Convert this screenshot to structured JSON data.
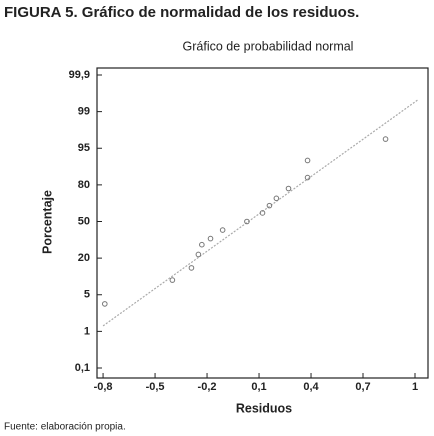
{
  "figure": {
    "caption": "FIGURA 5. Gráfico de normalidad de los residuos.",
    "source": "Fuente: elaboración propia."
  },
  "chart_data": {
    "type": "scatter",
    "title": "Gráfico de probabilidad normal",
    "x_label": "Residuos",
    "y_label": "Porcentaje",
    "series": [
      {
        "name": "Residuos",
        "color": "#777777",
        "x": [
          -0.79,
          -0.4,
          -0.29,
          -0.25,
          -0.23,
          -0.18,
          -0.11,
          0.03,
          0.12,
          0.16,
          0.2,
          0.27,
          0.38,
          0.38,
          0.83
        ],
        "values": [
          4,
          11,
          16,
          23,
          31,
          36,
          43,
          50,
          57,
          63,
          69,
          77,
          83,
          90,
          96
        ]
      }
    ],
    "reference_line": {
      "color": "#aaaaaa",
      "x": [
        -0.8,
        1.02
      ],
      "y": [
        1.6,
        99.3
      ]
    },
    "xlim": [
      -0.835,
      1.075
    ],
    "xticks": [
      {
        "value": -0.8,
        "label": "-0,8"
      },
      {
        "value": -0.5,
        "label": "-0,5"
      },
      {
        "value": -0.2,
        "label": "-0,2"
      },
      {
        "value": 0.1,
        "label": "0,1"
      },
      {
        "value": 0.4,
        "label": "0,4"
      },
      {
        "value": 0.7,
        "label": "0,7"
      },
      1
    ],
    "ylim": [
      0.05,
      99.95
    ],
    "yticks": [
      {
        "value": 0.1,
        "label": "0,1"
      },
      1,
      5,
      20,
      50,
      80,
      95,
      99,
      {
        "value": 99.9,
        "label": "99,9"
      }
    ]
  }
}
